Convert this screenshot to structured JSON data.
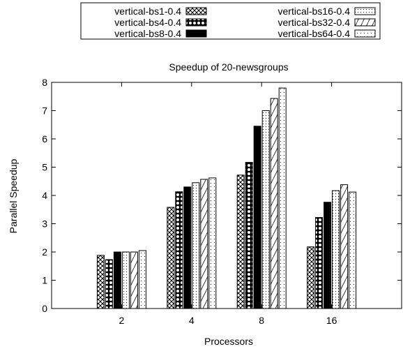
{
  "chart_data": {
    "type": "bar",
    "title": "Speedup of 20-newsgroups",
    "xlabel": "Processors",
    "ylabel": "Parallel Speedup",
    "categories": [
      "2",
      "4",
      "8",
      "16"
    ],
    "ylim": [
      0,
      8
    ],
    "yticks": [
      0,
      1,
      2,
      3,
      4,
      5,
      6,
      7,
      8
    ],
    "grid": false,
    "legend_position": "top, outside plot",
    "series": [
      {
        "name": "vertical-bs1-0.4",
        "pattern": "crosshatch",
        "values": [
          1.88,
          3.58,
          4.72,
          2.18
        ]
      },
      {
        "name": "vertical-bs4-0.4",
        "pattern": "circles",
        "values": [
          1.73,
          4.13,
          5.17,
          3.22
        ]
      },
      {
        "name": "vertical-bs8-0.4",
        "pattern": "solid",
        "values": [
          2.0,
          4.3,
          6.45,
          3.76
        ]
      },
      {
        "name": "vertical-bs16-0.4",
        "pattern": "dots",
        "values": [
          2.0,
          4.45,
          7.0,
          4.17
        ]
      },
      {
        "name": "vertical-bs32-0.4",
        "pattern": "diagonal",
        "values": [
          2.0,
          4.57,
          7.43,
          4.38
        ]
      },
      {
        "name": "vertical-bs64-0.4",
        "pattern": "sparse-dots",
        "values": [
          2.05,
          4.62,
          7.8,
          4.12
        ]
      }
    ]
  }
}
